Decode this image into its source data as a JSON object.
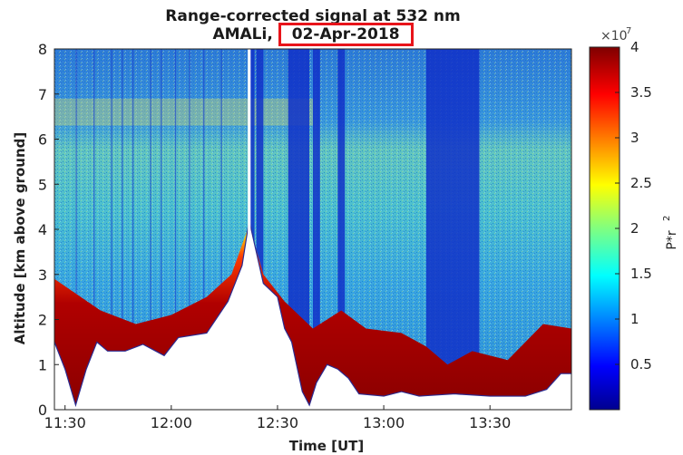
{
  "chart_data": {
    "type": "heatmap",
    "title_prefix": "Range-corrected signal at 532 nm",
    "title_station": "AMALi,",
    "title_date": "02-Apr-2018",
    "xlabel": "Time [UT]",
    "ylabel": "Altitude [km above ground]",
    "x_ticks": [
      "11:30",
      "12:00",
      "12:30",
      "13:00",
      "13:30"
    ],
    "x_range_minutes": [
      687,
      833
    ],
    "x_tick_minutes": [
      690,
      720,
      750,
      780,
      810
    ],
    "y_ticks": [
      "0",
      "1",
      "2",
      "3",
      "4",
      "5",
      "6",
      "7",
      "8"
    ],
    "y_range": [
      0,
      8
    ],
    "colorbar_multiplier": "×10",
    "colorbar_exponent": "7",
    "colorbar_ticks": [
      "0.5",
      "1",
      "1.5",
      "2",
      "2.5",
      "3",
      "3.5",
      "4"
    ],
    "colorbar_range": [
      0.0,
      4.0
    ],
    "colorbar_label_base": "P*r",
    "colorbar_label_exp": "2",
    "colormap": "jet",
    "ground_altitude_profile": [
      [
        687,
        1.5
      ],
      [
        690,
        0.9
      ],
      [
        693,
        0.1
      ],
      [
        696,
        0.9
      ],
      [
        699,
        1.5
      ],
      [
        702,
        1.3
      ],
      [
        707,
        1.3
      ],
      [
        712,
        1.45
      ],
      [
        718,
        1.2
      ],
      [
        722,
        1.6
      ],
      [
        730,
        1.7
      ],
      [
        736,
        2.4
      ],
      [
        740,
        3.2
      ],
      [
        742,
        4.2
      ],
      [
        744,
        3.5
      ],
      [
        746,
        2.8
      ],
      [
        750,
        2.5
      ],
      [
        752,
        1.8
      ],
      [
        754,
        1.5
      ],
      [
        757,
        0.4
      ],
      [
        759,
        0.1
      ],
      [
        761,
        0.6
      ],
      [
        764,
        1.0
      ],
      [
        767,
        0.9
      ],
      [
        770,
        0.7
      ],
      [
        773,
        0.35
      ],
      [
        780,
        0.3
      ],
      [
        785,
        0.4
      ],
      [
        790,
        0.3
      ],
      [
        800,
        0.35
      ],
      [
        810,
        0.3
      ],
      [
        820,
        0.3
      ],
      [
        826,
        0.45
      ],
      [
        830,
        0.8
      ],
      [
        833,
        0.8
      ]
    ],
    "aerosol_top_profile": [
      [
        687,
        2.9
      ],
      [
        700,
        2.2
      ],
      [
        710,
        1.9
      ],
      [
        720,
        2.1
      ],
      [
        730,
        2.5
      ],
      [
        737,
        3.0
      ],
      [
        742,
        4.1
      ],
      [
        746,
        3.0
      ],
      [
        752,
        2.4
      ],
      [
        760,
        1.8
      ],
      [
        768,
        2.2
      ],
      [
        775,
        1.8
      ],
      [
        785,
        1.7
      ],
      [
        792,
        1.4
      ],
      [
        798,
        1.0
      ],
      [
        805,
        1.3
      ],
      [
        815,
        1.1
      ],
      [
        825,
        1.9
      ],
      [
        833,
        1.8
      ]
    ],
    "dark_blue_bands": [
      [
        742,
        743.5
      ],
      [
        744,
        746
      ],
      [
        753,
        759
      ],
      [
        760,
        762
      ],
      [
        767,
        769
      ],
      [
        792,
        807
      ]
    ],
    "data_gap_minutes": [
      741.6,
      742.4
    ]
  }
}
